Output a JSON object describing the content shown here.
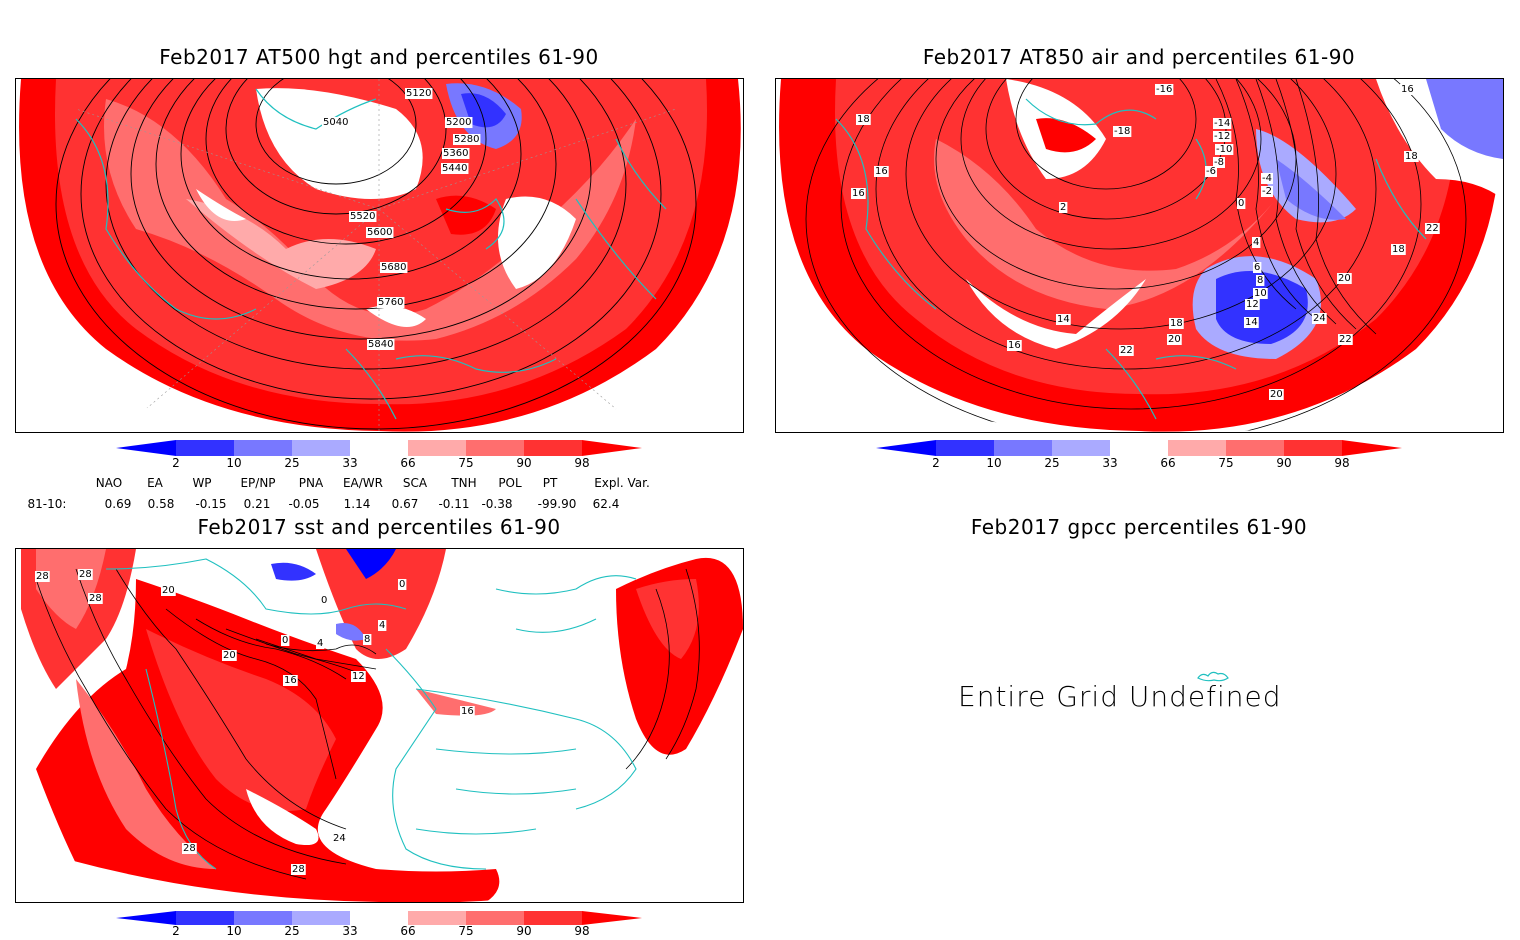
{
  "panels": {
    "hgt": {
      "title": "Feb2017 AT500 hgt and percentiles 61-90",
      "contour_labels": [
        "5040",
        "5120",
        "5200",
        "5280",
        "5360",
        "5440",
        "5520",
        "5600",
        "5680",
        "5760",
        "5840"
      ]
    },
    "air": {
      "title": "Feb2017 AT850 air and percentiles 61-90",
      "contour_labels": [
        "18",
        "16",
        "16",
        "-16",
        "-18",
        "-14",
        "-12",
        "-10",
        "-8",
        "-6",
        "-4",
        "-2",
        "0",
        "2",
        "4",
        "6",
        "8",
        "10",
        "12",
        "14",
        "16",
        "18",
        "18",
        "20",
        "20",
        "20",
        "22",
        "22",
        "22",
        "24",
        "16",
        "14",
        "18"
      ]
    },
    "sst": {
      "title": "Feb2017 sst and percentiles 61-90",
      "contour_labels": [
        "28",
        "28",
        "28",
        "20",
        "20",
        "16",
        "12",
        "8",
        "4",
        "4",
        "0",
        "0",
        "0",
        "24",
        "28",
        "28",
        "16"
      ]
    },
    "gpcc": {
      "title": "Feb2017 gpcc percentiles 61-90",
      "message": "Entire Grid Undefined"
    }
  },
  "colorbar": {
    "labels": [
      "2",
      "10",
      "25",
      "33",
      "66",
      "75",
      "90",
      "98"
    ],
    "colors": [
      "#0000ff",
      "#3232ff",
      "#7878ff",
      "#aaaaff",
      "#ffffff",
      "#ffaaaa",
      "#ff6e6e",
      "#ff3232",
      "#ff0000"
    ]
  },
  "indices": {
    "headers": [
      "NAO",
      "EA",
      "WP",
      "EP/NP",
      "PNA",
      "EA/WR",
      "SCA",
      "TNH",
      "POL",
      "PT",
      "Expl. Var."
    ],
    "row_label": "81-10:",
    "values": [
      "0.69",
      "0.58",
      "-0.15",
      "0.21",
      "-0.05",
      "1.14",
      "0.67",
      "-0.11",
      "-0.38",
      "-99.90",
      "62.4"
    ]
  }
}
